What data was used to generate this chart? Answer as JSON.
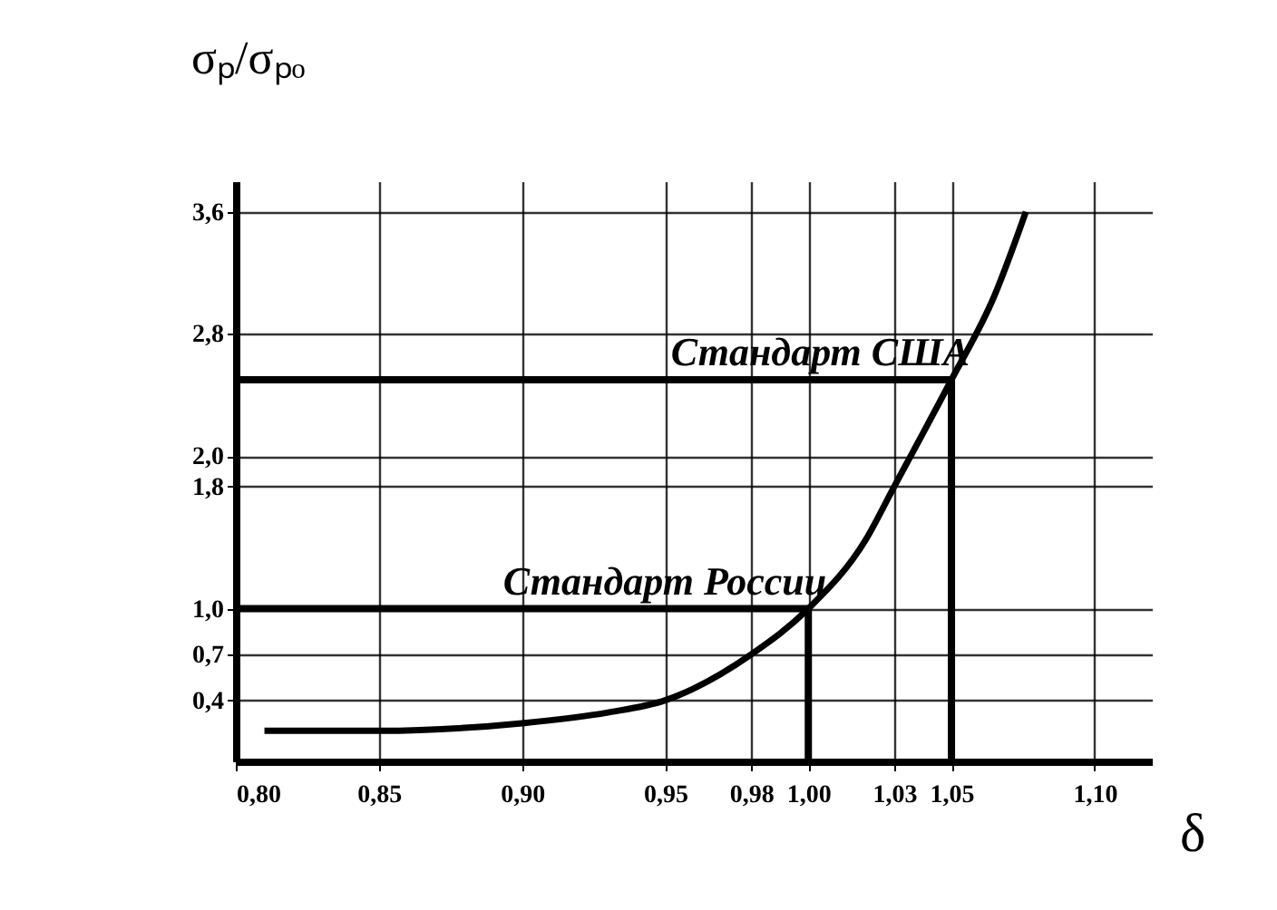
{
  "chart_data": {
    "type": "line",
    "xlabel": "δ",
    "ylabel": "σₚ/σₚₒ",
    "x": [
      0.81,
      0.85,
      0.9,
      0.93,
      0.95,
      0.98,
      1.0,
      1.02,
      1.03,
      1.05,
      1.065,
      1.076
    ],
    "series": [
      {
        "color": "#000000",
        "values": [
          0.2,
          0.2,
          0.25,
          0.32,
          0.4,
          0.7,
          1.0,
          1.45,
          1.8,
          2.5,
          3.05,
          3.6
        ]
      }
    ],
    "xlim": [
      0.8,
      1.12
    ],
    "ylim": [
      0,
      3.8
    ],
    "xticks": [
      {
        "value": 0.8,
        "label": "0,80"
      },
      {
        "value": 0.85,
        "label": "0,85"
      },
      {
        "value": 0.9,
        "label": "0,90"
      },
      {
        "value": 0.95,
        "label": "0,95"
      },
      {
        "value": 0.98,
        "label": "0,98"
      },
      {
        "value": 1.0,
        "label": "1,00"
      },
      {
        "value": 1.03,
        "label": "1,03"
      },
      {
        "value": 1.05,
        "label": "1,05"
      },
      {
        "value": 1.1,
        "label": "1,10"
      }
    ],
    "yticks": [
      {
        "value": 0.4,
        "label": "0,4"
      },
      {
        "value": 0.7,
        "label": "0,7"
      },
      {
        "value": 1.0,
        "label": "1,0"
      },
      {
        "value": 1.8,
        "label": "1,8"
      },
      {
        "value": 2.0,
        "label": "2,0"
      },
      {
        "value": 2.8,
        "label": "2,8"
      },
      {
        "value": 3.6,
        "label": "3,6"
      }
    ],
    "grid": true,
    "ref_lines": [
      {
        "axis": "y",
        "value": 1.0,
        "label": "Стандарт России"
      },
      {
        "axis": "x",
        "value": 1.0
      },
      {
        "axis": "y",
        "value": 2.5,
        "label": "Стандарт США"
      },
      {
        "axis": "x",
        "value": 1.05
      }
    ]
  }
}
